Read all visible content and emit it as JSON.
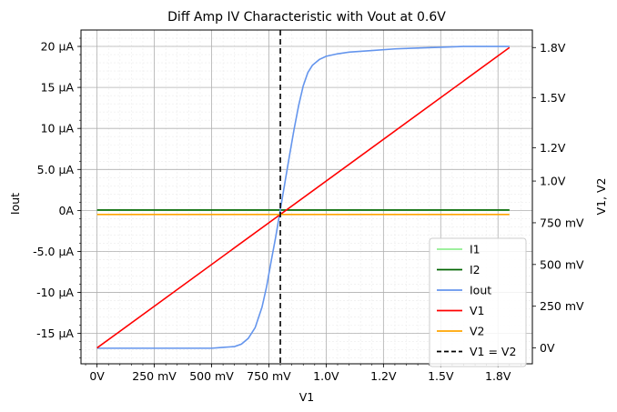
{
  "chart_data": {
    "type": "line",
    "title": "Diff Amp IV Characteristic with Vout at 0.6V",
    "xlabel": "V1",
    "ylabel_left": "Iout",
    "ylabel_right": "V1, V2",
    "xlim": [
      -0.07,
      1.9
    ],
    "ylim_left": [
      -1.87e-05,
      2.2e-05
    ],
    "ylim_right": [
      -0.095,
      1.905
    ],
    "x_ticks": [
      {
        "value": 0,
        "label": "0V"
      },
      {
        "value": 0.25,
        "label": "250 mV"
      },
      {
        "value": 0.5,
        "label": "500 mV"
      },
      {
        "value": 0.75,
        "label": "750 mV"
      },
      {
        "value": 1.0,
        "label": "1.0V"
      },
      {
        "value": 1.25,
        "label": "1.2V"
      },
      {
        "value": 1.5,
        "label": "1.5V"
      },
      {
        "value": 1.75,
        "label": "1.8V"
      }
    ],
    "y_left_ticks": [
      {
        "value": 2e-05,
        "label": "20 μA"
      },
      {
        "value": 1.5e-05,
        "label": "15 μA"
      },
      {
        "value": 1e-05,
        "label": "10 μA"
      },
      {
        "value": 5e-06,
        "label": "5.0 μA"
      },
      {
        "value": 0,
        "label": "0A"
      },
      {
        "value": -5e-06,
        "label": "-5.0 μA"
      },
      {
        "value": -1e-05,
        "label": "-10 μA"
      },
      {
        "value": -1.5e-05,
        "label": "-15 μA"
      }
    ],
    "y_right_ticks": [
      {
        "value": 1.8,
        "label": "1.8V"
      },
      {
        "value": 1.5,
        "label": "1.5V"
      },
      {
        "value": 1.2,
        "label": "1.2V"
      },
      {
        "value": 1.0,
        "label": "1.0V"
      },
      {
        "value": 0.75,
        "label": "750 mV"
      },
      {
        "value": 0.5,
        "label": "500 mV"
      },
      {
        "value": 0.25,
        "label": "250 mV"
      },
      {
        "value": 0,
        "label": "0V"
      }
    ],
    "grid": true,
    "legend_position": "bottom-right",
    "series": [
      {
        "name": "I1",
        "axis": "left",
        "color": "#90ee90",
        "x": [
          0,
          1.8
        ],
        "y": [
          5e-08,
          5e-08
        ]
      },
      {
        "name": "I2",
        "axis": "left",
        "color": "#006400",
        "x": [
          0,
          1.8
        ],
        "y": [
          5e-08,
          5e-08
        ]
      },
      {
        "name": "Iout",
        "axis": "left",
        "color": "#6495ed",
        "x": [
          0,
          0.3,
          0.5,
          0.55,
          0.6,
          0.63,
          0.66,
          0.69,
          0.72,
          0.74,
          0.76,
          0.78,
          0.8,
          0.82,
          0.84,
          0.86,
          0.88,
          0.9,
          0.92,
          0.94,
          0.97,
          1.0,
          1.05,
          1.1,
          1.2,
          1.3,
          1.4,
          1.5,
          1.6,
          1.8
        ],
        "y": [
          -1.68e-05,
          -1.68e-05,
          -1.68e-05,
          -1.67e-05,
          -1.66e-05,
          -1.63e-05,
          -1.56e-05,
          -1.43e-05,
          -1.18e-05,
          -9.3e-06,
          -6.2e-06,
          -3.2e-06,
          1e-07,
          3.4e-06,
          6.7e-06,
          9.9e-06,
          1.28e-05,
          1.52e-05,
          1.68e-05,
          1.77e-05,
          1.84e-05,
          1.88e-05,
          1.91e-05,
          1.93e-05,
          1.95e-05,
          1.97e-05,
          1.98e-05,
          1.99e-05,
          2e-05,
          2e-05
        ]
      },
      {
        "name": "V1",
        "axis": "right",
        "color": "#ff0000",
        "x": [
          0,
          1.8
        ],
        "y": [
          0,
          1.8
        ]
      },
      {
        "name": "V2",
        "axis": "right",
        "color": "#ffa500",
        "x": [
          0,
          1.8
        ],
        "y": [
          0.8,
          0.8
        ]
      },
      {
        "name": "V1 = V2",
        "axis": "vline",
        "color": "#000000",
        "dashed": true,
        "x": [
          0.8
        ]
      }
    ]
  }
}
